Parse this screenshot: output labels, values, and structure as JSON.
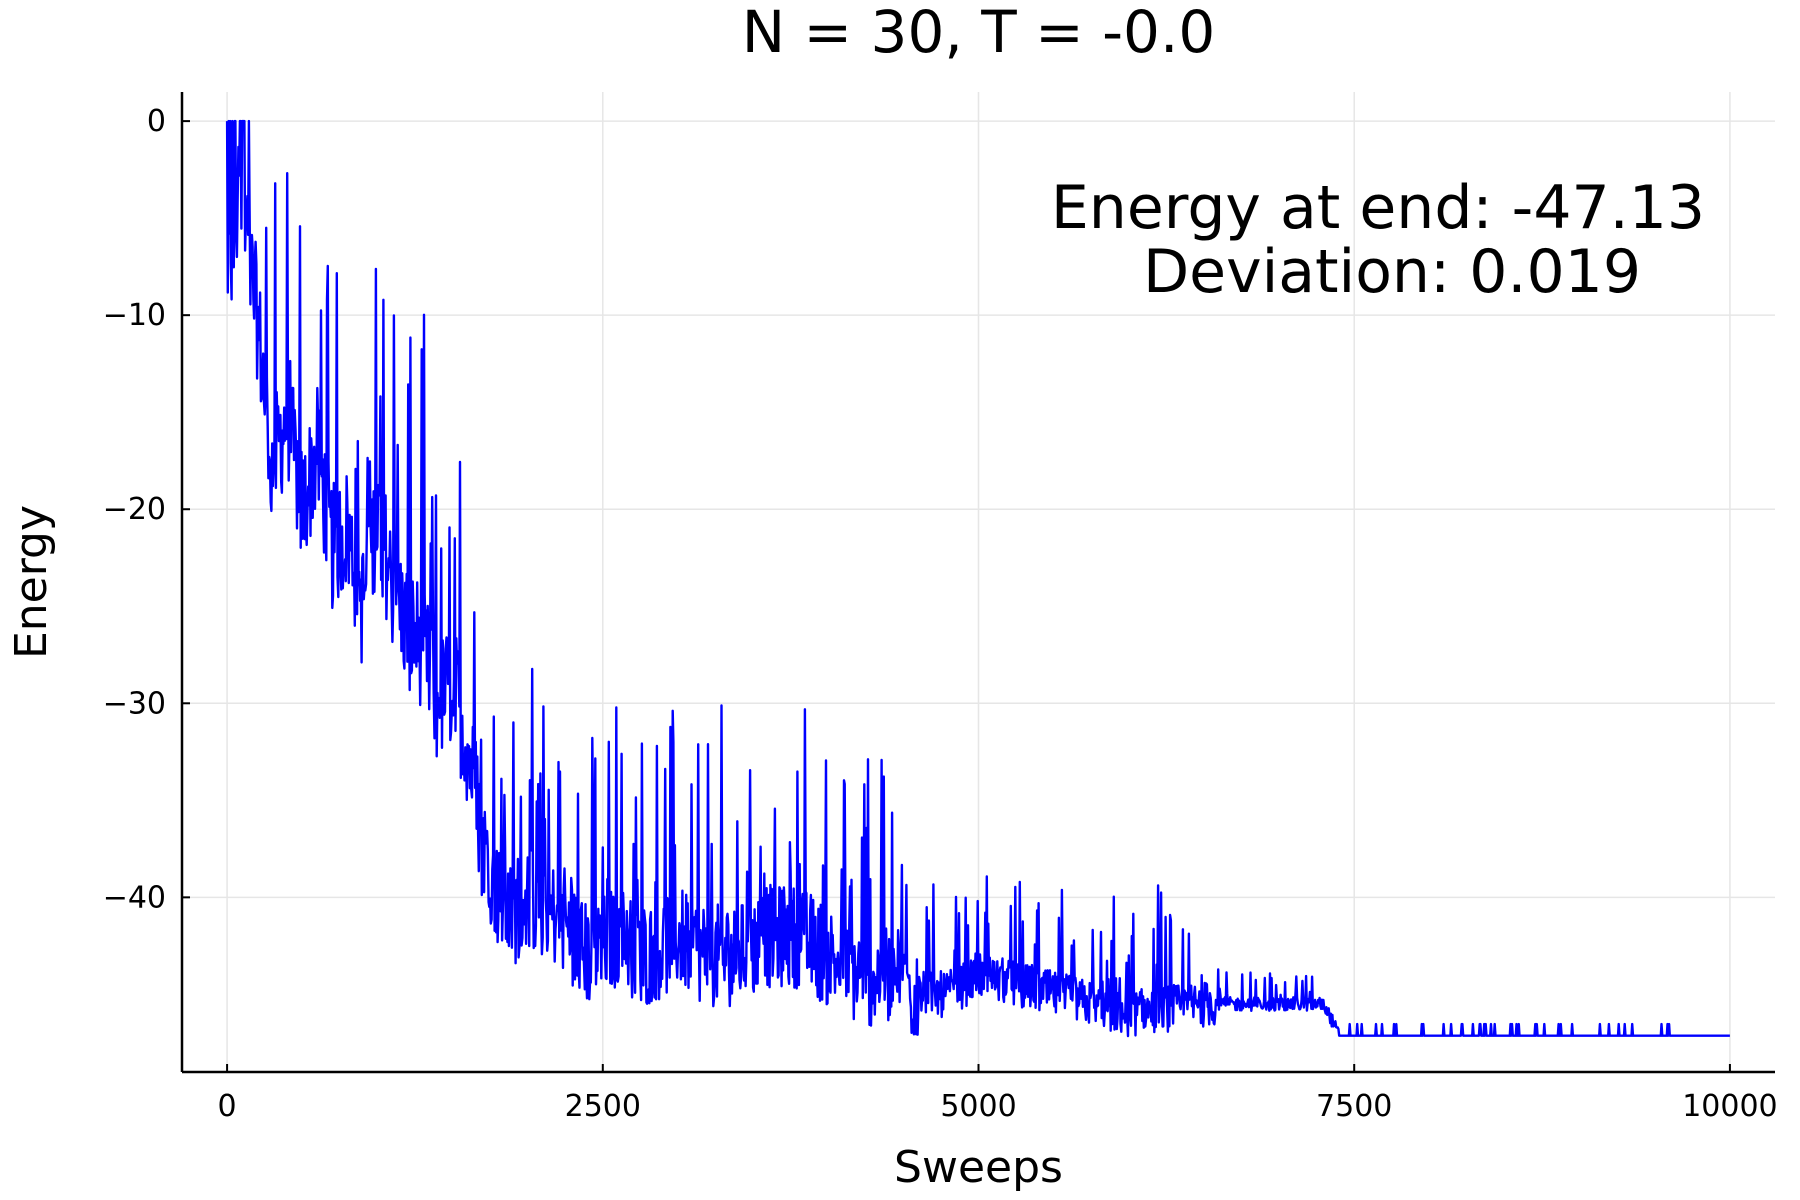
{
  "chart_data": {
    "type": "line",
    "title": "N = 30, T = -0.0",
    "xlabel": "Sweeps",
    "ylabel": "Energy",
    "xlim": [
      -300,
      10300
    ],
    "ylim": [
      -49,
      1.5
    ],
    "xticks": [
      0,
      2500,
      5000,
      7500,
      10000
    ],
    "xtick_labels": [
      "0",
      "2500",
      "5000",
      "7500",
      "10000"
    ],
    "yticks": [
      0,
      -10,
      -20,
      -30,
      -40
    ],
    "ytick_labels": [
      "0",
      "−10",
      "−20",
      "−30",
      "−40"
    ],
    "grid": true,
    "legend": "none",
    "annotations": [
      "Energy at end: -47.13",
      "Deviation: 0.019"
    ],
    "series": [
      {
        "color": "#0000ff",
        "note_shape": "noisy descent",
        "x": [
          0,
          100,
          200,
          300,
          400,
          500,
          600,
          700,
          800,
          900,
          1000,
          1100,
          1200,
          1300,
          1400,
          1500,
          1600,
          1700,
          1800,
          1900,
          2000,
          2200,
          2400,
          2600,
          2800,
          3000,
          3200,
          3400,
          3600,
          3800,
          4000,
          4200,
          4400,
          4600,
          4800,
          5000,
          5500,
          6000,
          6500,
          7000,
          7300,
          7400,
          8000,
          9000,
          10000
        ],
        "y": [
          0,
          -5,
          -10,
          -18,
          -15,
          -20,
          -17,
          -22,
          -21,
          -25,
          -20,
          -24,
          -26,
          -27,
          -30,
          -29,
          -32,
          -37,
          -40,
          -41,
          -40,
          -41,
          -43,
          -42,
          -43,
          -42,
          -43,
          -43,
          -42,
          -42,
          -43,
          -44,
          -44,
          -45,
          -45,
          -44,
          -45,
          -46,
          -45.5,
          -45.5,
          -45.5,
          -47.13,
          -47.13,
          -47.13,
          -47.13
        ]
      }
    ]
  }
}
